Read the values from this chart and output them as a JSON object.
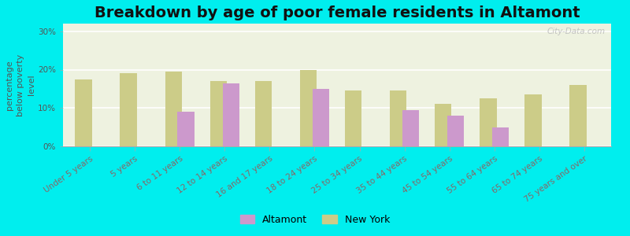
{
  "title": "Breakdown by age of poor female residents in Altamont",
  "ylabel": "percentage\nbelow poverty\nlevel",
  "categories": [
    "Under 5 years",
    "5 years",
    "6 to 11 years",
    "12 to 14 years",
    "16 and 17 years",
    "18 to 24 years",
    "25 to 34 years",
    "35 to 44 years",
    "45 to 54 years",
    "55 to 64 years",
    "65 to 74 years",
    "75 years and over"
  ],
  "altamont_values": [
    null,
    null,
    9.0,
    16.5,
    null,
    15.0,
    null,
    9.5,
    8.0,
    5.0,
    null,
    null
  ],
  "newyork_values": [
    17.5,
    19.0,
    19.5,
    17.0,
    17.0,
    20.0,
    14.5,
    14.5,
    11.0,
    12.5,
    13.5,
    16.0
  ],
  "altamont_color": "#cc99cc",
  "newyork_color": "#cccc88",
  "background_color": "#00eeee",
  "plot_bg_color": "#eef2e0",
  "ylim": [
    0,
    32
  ],
  "yticks": [
    0,
    10,
    20,
    30
  ],
  "ytick_labels": [
    "0%",
    "10%",
    "20%",
    "30%"
  ],
  "title_fontsize": 14,
  "axis_label_fontsize": 8,
  "tick_label_fontsize": 7.5,
  "legend_labels": [
    "Altamont",
    "New York"
  ],
  "watermark": "City-Data.com"
}
